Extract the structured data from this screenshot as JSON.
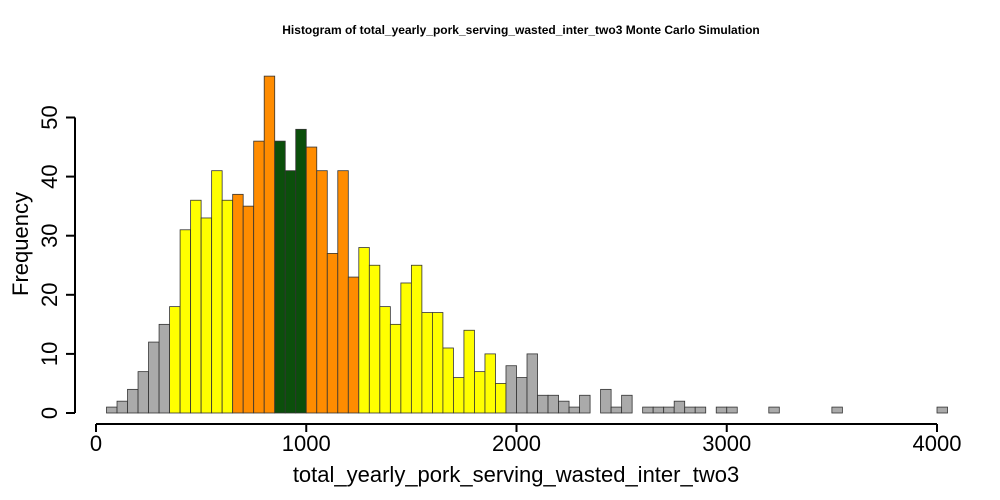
{
  "chart_data": {
    "type": "bar",
    "title": "Histogram of  total_yearly_pork_serving_wasted_inter_two3  Monte Carlo Simulation",
    "xlabel": "total_yearly_pork_serving_wasted_inter_two3",
    "ylabel": "Frequency",
    "xlim": [
      0,
      4000
    ],
    "ylim": [
      0,
      57
    ],
    "x_ticks": [
      "0",
      "1000",
      "2000",
      "3000",
      "4000"
    ],
    "y_ticks": [
      "0",
      "10",
      "20",
      "30",
      "40",
      "50"
    ],
    "grid": false,
    "legend": "none",
    "bin_width": 50,
    "bin_start": 50,
    "values": [
      1,
      2,
      4,
      7,
      12,
      15,
      18,
      31,
      36,
      33,
      41,
      36,
      37,
      35,
      46,
      57,
      46,
      41,
      48,
      45,
      41,
      27,
      41,
      23,
      28,
      25,
      18,
      15,
      22,
      25,
      17,
      17,
      11,
      6,
      14,
      7,
      10,
      5,
      8,
      6,
      10,
      3,
      3,
      2,
      1,
      3,
      0,
      4,
      1,
      3,
      0,
      1,
      1,
      1,
      2,
      1,
      1,
      0,
      1,
      1,
      0,
      0,
      0,
      1,
      0,
      0,
      0,
      0,
      0,
      1,
      0,
      0,
      0,
      0,
      0,
      0,
      0,
      0,
      0,
      1
    ],
    "colors": {
      "tail": "#aaaaaa",
      "outer": "#ffff00",
      "inner": "#ff8c00",
      "center": "#0b4f0b",
      "edge": "#333333"
    },
    "zones": [
      {
        "range": [
          50,
          350
        ],
        "color": "tail"
      },
      {
        "range": [
          350,
          650
        ],
        "color": "outer"
      },
      {
        "range": [
          650,
          850
        ],
        "color": "inner"
      },
      {
        "range": [
          850,
          1000
        ],
        "color": "center"
      },
      {
        "range": [
          1000,
          1250
        ],
        "color": "inner"
      },
      {
        "range": [
          1250,
          1950
        ],
        "color": "outer"
      },
      {
        "range": [
          1950,
          4000
        ],
        "color": "tail"
      }
    ]
  }
}
